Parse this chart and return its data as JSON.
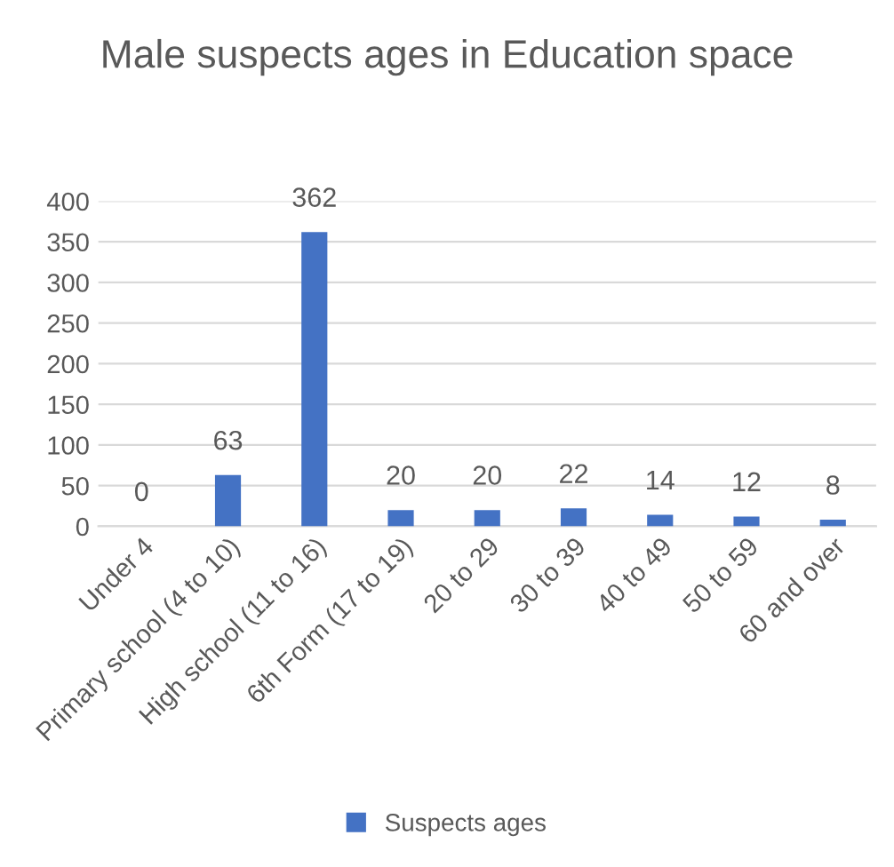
{
  "chart_data": {
    "type": "bar",
    "title": "Male suspects ages in Education space",
    "categories": [
      "Under 4",
      "Primary school (4 to 10)",
      "High school (11 to 16)",
      "6th Form (17 to 19)",
      "20 to 29",
      "30 to 39",
      "40 to 49",
      "50 to 59",
      "60 and over"
    ],
    "series": [
      {
        "name": "Suspects ages",
        "color": "#4472c4",
        "values": [
          0,
          63,
          362,
          20,
          20,
          22,
          14,
          12,
          8
        ]
      }
    ],
    "ylim": [
      0,
      400
    ],
    "yticks": [
      0,
      50,
      100,
      150,
      200,
      250,
      300,
      350,
      400
    ],
    "grid": "y",
    "legend": "bottom",
    "data_labels": true
  }
}
